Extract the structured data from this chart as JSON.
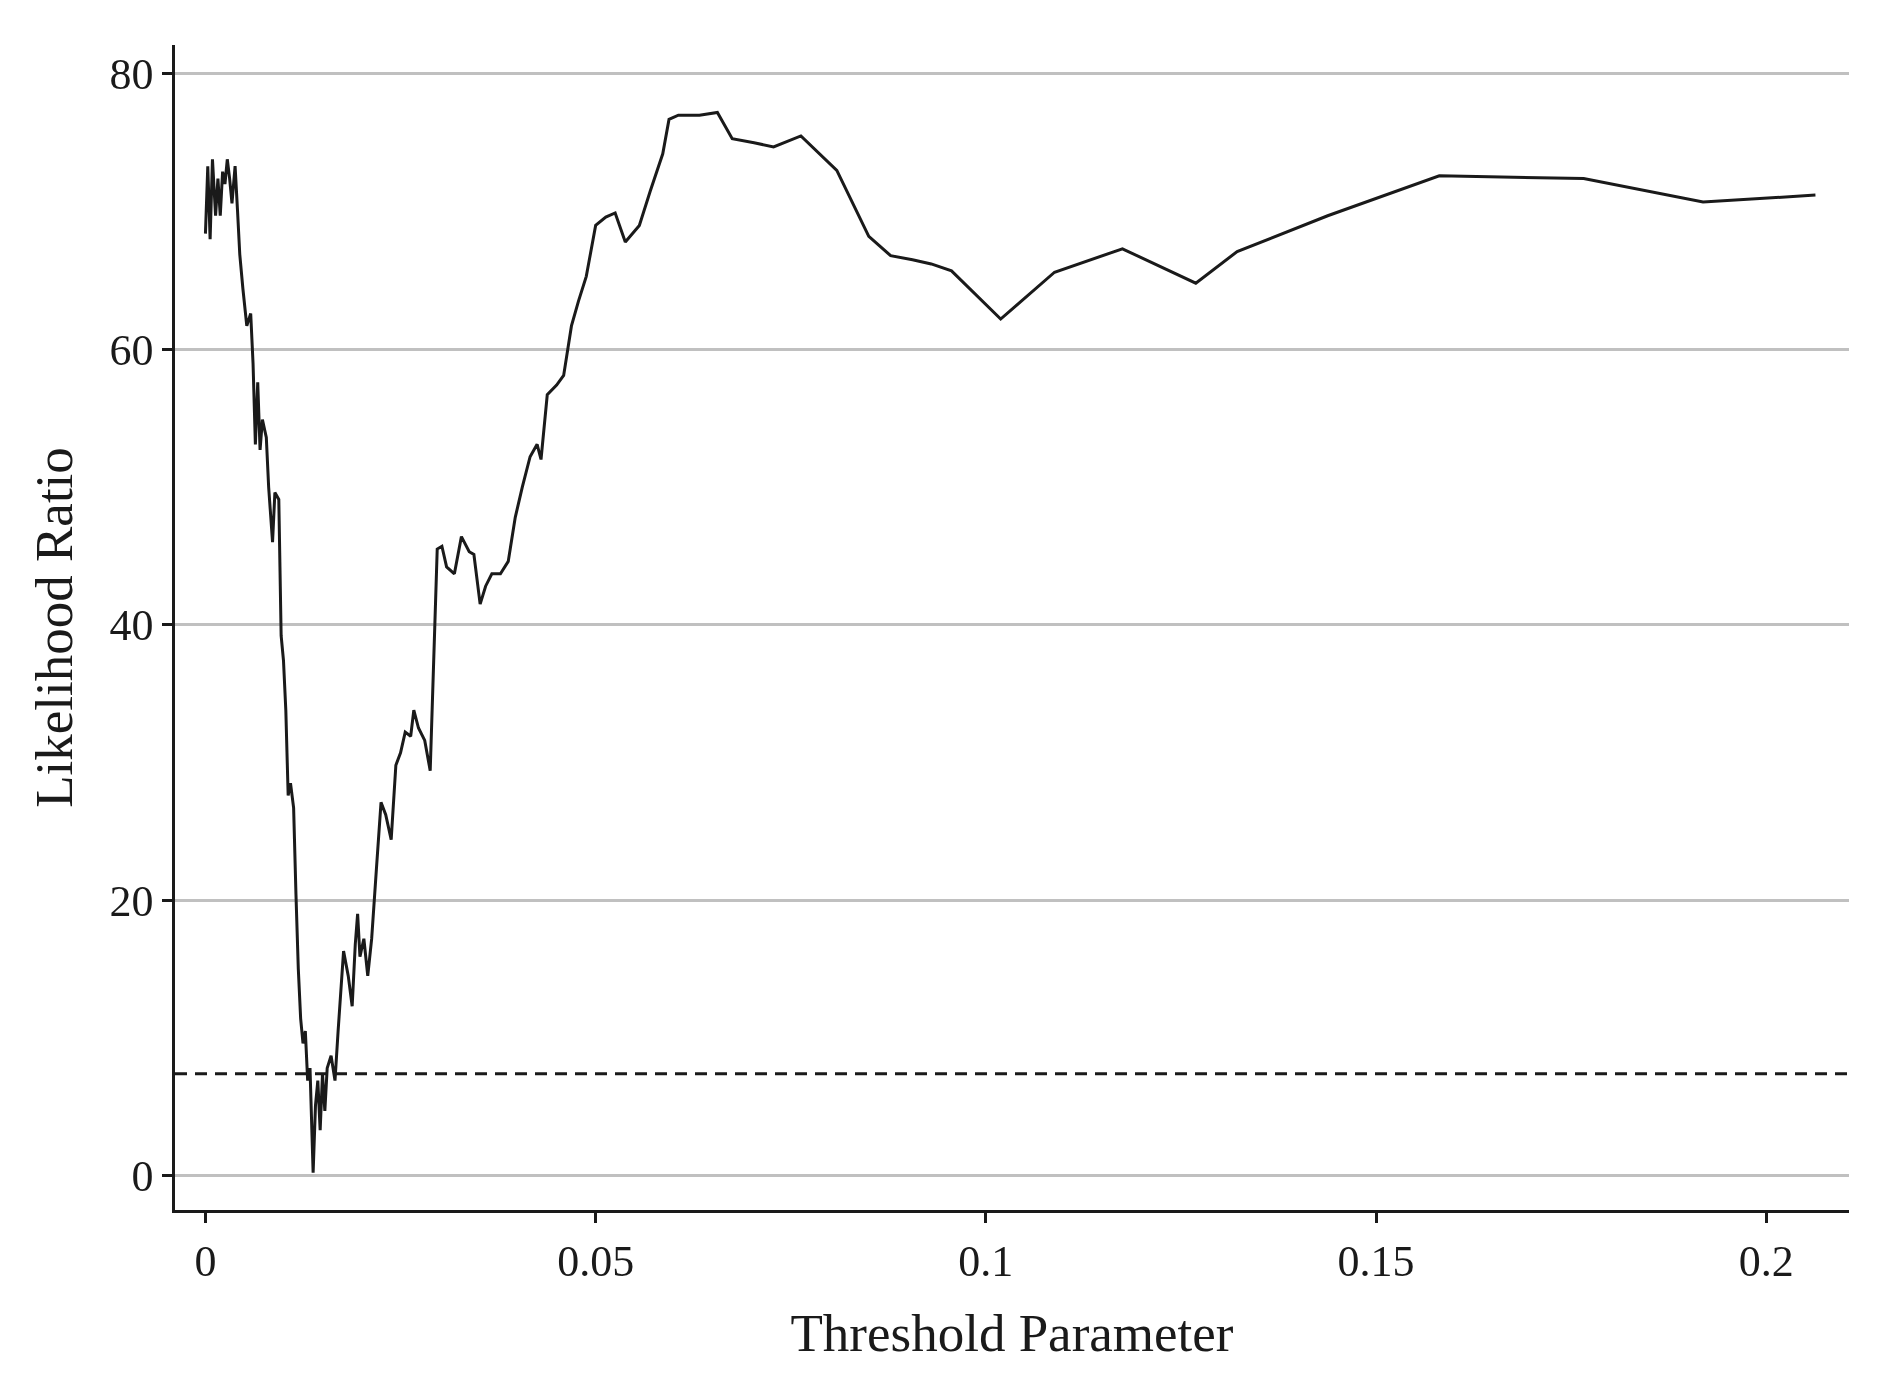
{
  "chart_data": {
    "type": "line",
    "xlabel": "Threshold Parameter",
    "ylabel": "Likelihood Ratio",
    "xlim": [
      -0.0039,
      0.2106
    ],
    "ylim": [
      -2.5,
      82.1
    ],
    "xticks": [
      0,
      0.05,
      0.1,
      0.15,
      0.2
    ],
    "yticks": [
      0,
      20,
      40,
      60,
      80
    ],
    "grid": "y",
    "line_style": "solid",
    "ref_lines": [
      {
        "axis": "y",
        "value": 7.4,
        "color": "#1a1a1a",
        "line_style": "dashed"
      }
    ],
    "series": [
      {
        "color": "#1a1a1a",
        "x": [
          0,
          0.0003,
          0.0006,
          0.0009,
          0.0013,
          0.0016,
          0.0019,
          0.0022,
          0.0025,
          0.0028,
          0.0031,
          0.0034,
          0.0038,
          0.0041,
          0.0044,
          0.0048,
          0.0053,
          0.0058,
          0.0061,
          0.0064,
          0.0067,
          0.007,
          0.0073,
          0.0078,
          0.0081,
          0.0086,
          0.0089,
          0.0094,
          0.0097,
          0.01,
          0.0103,
          0.0106,
          0.0109,
          0.0113,
          0.0116,
          0.0119,
          0.0122,
          0.0125,
          0.0128,
          0.0131,
          0.0134,
          0.0138,
          0.0141,
          0.0144,
          0.0147,
          0.015,
          0.0153,
          0.0156,
          0.0161,
          0.0166,
          0.017,
          0.0177,
          0.0183,
          0.0188,
          0.0192,
          0.0195,
          0.0198,
          0.0203,
          0.0208,
          0.0213,
          0.0219,
          0.0225,
          0.0231,
          0.0238,
          0.0244,
          0.025,
          0.0256,
          0.0263,
          0.0267,
          0.0273,
          0.0281,
          0.0288,
          0.0294,
          0.0297,
          0.0303,
          0.0309,
          0.0319,
          0.0328,
          0.0338,
          0.0344,
          0.0352,
          0.0359,
          0.0367,
          0.0378,
          0.0388,
          0.0397,
          0.0406,
          0.0416,
          0.0425,
          0.043,
          0.0438,
          0.045,
          0.0459,
          0.0469,
          0.0478,
          0.0488,
          0.05,
          0.0513,
          0.0525,
          0.0538,
          0.0547,
          0.0556,
          0.057,
          0.0586,
          0.0594,
          0.0606,
          0.0633,
          0.0656,
          0.0675,
          0.0703,
          0.0728,
          0.0763,
          0.0809,
          0.085,
          0.0878,
          0.0906,
          0.093,
          0.0956,
          0.1019,
          0.1088,
          0.1175,
          0.1269,
          0.1322,
          0.1438,
          0.1581,
          0.1766,
          0.1919,
          0.2063
        ],
        "values": [
          68.4,
          73.3,
          68.0,
          73.8,
          69.7,
          72.4,
          69.7,
          72.9,
          72.0,
          73.8,
          72.4,
          70.6,
          73.3,
          70.2,
          66.9,
          64.4,
          61.7,
          62.6,
          59.0,
          53.1,
          57.6,
          52.7,
          54.9,
          53.6,
          50.0,
          46.0,
          49.6,
          49.1,
          39.2,
          37.4,
          33.8,
          27.6,
          28.5,
          26.7,
          20.4,
          15.0,
          11.4,
          9.6,
          10.5,
          6.9,
          7.8,
          0.2,
          5.1,
          6.9,
          3.3,
          7.4,
          4.7,
          7.8,
          8.7,
          6.9,
          10.5,
          16.3,
          14.5,
          12.3,
          16.8,
          19.0,
          15.9,
          17.2,
          14.5,
          17.2,
          22.2,
          27.1,
          26.2,
          24.4,
          29.8,
          30.7,
          32.2,
          31.9,
          33.8,
          32.5,
          31.6,
          29.4,
          40.1,
          45.5,
          45.7,
          44.2,
          43.7,
          46.4,
          45.3,
          45.1,
          41.5,
          42.8,
          43.7,
          43.7,
          44.6,
          47.8,
          50.0,
          52.2,
          53.1,
          52.0,
          56.7,
          57.4,
          58.1,
          61.7,
          63.5,
          65.3,
          69.0,
          69.6,
          69.9,
          67.8,
          68.4,
          69.0,
          71.5,
          74.2,
          76.7,
          77.0,
          77.0,
          77.2,
          75.3,
          75.0,
          74.7,
          75.5,
          73.0,
          68.2,
          66.8,
          66.5,
          66.2,
          65.7,
          62.2,
          65.6,
          67.3,
          64.8,
          67.1,
          69.7,
          72.6,
          72.4,
          70.7,
          71.2
        ]
      }
    ]
  }
}
